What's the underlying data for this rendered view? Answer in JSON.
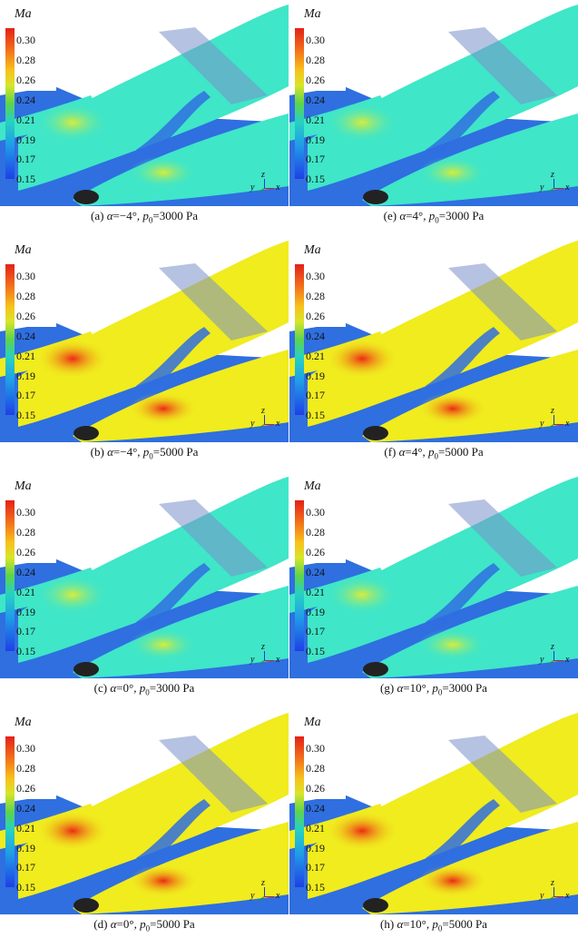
{
  "colorbar": {
    "title": "Ma",
    "ticks": [
      "0.30",
      "0.28",
      "0.26",
      "0.24",
      "0.21",
      "0.19",
      "0.17",
      "0.15"
    ]
  },
  "axis_triad": {
    "x": "x",
    "y": "y",
    "z": "z"
  },
  "panels": [
    {
      "id": "a",
      "label": "(a)",
      "alpha": "−4°",
      "p0": "3000",
      "unit": "Pa",
      "surface_color": "#3fe6c8",
      "hot_color": "#d8ec3a"
    },
    {
      "id": "b",
      "label": "(b)",
      "alpha": "−4°",
      "p0": "5000",
      "unit": "Pa",
      "surface_color": "#f0ec1e",
      "hot_color": "#ec2a14"
    },
    {
      "id": "c",
      "label": "(c)",
      "alpha": "0°",
      "p0": "3000",
      "unit": "Pa",
      "surface_color": "#3fe6c8",
      "hot_color": "#d8ec3a"
    },
    {
      "id": "d",
      "label": "(d)",
      "alpha": "0°",
      "p0": "5000",
      "unit": "Pa",
      "surface_color": "#f0ec1e",
      "hot_color": "#ec2a14"
    },
    {
      "id": "e",
      "label": "(e)",
      "alpha": "4°",
      "p0": "3000",
      "unit": "Pa",
      "surface_color": "#3fe6c8",
      "hot_color": "#d8ec3a"
    },
    {
      "id": "f",
      "label": "(f)",
      "alpha": "4°",
      "p0": "5000",
      "unit": "Pa",
      "surface_color": "#f0ec1e",
      "hot_color": "#ec2a14"
    },
    {
      "id": "g",
      "label": "(g)",
      "alpha": "10°",
      "p0": "3000",
      "unit": "Pa",
      "surface_color": "#3fe6c8",
      "hot_color": "#d8ec3a"
    },
    {
      "id": "h",
      "label": "(h)",
      "alpha": "10°",
      "p0": "5000",
      "unit": "Pa",
      "surface_color": "#f0ec1e",
      "hot_color": "#ec2a14"
    }
  ]
}
